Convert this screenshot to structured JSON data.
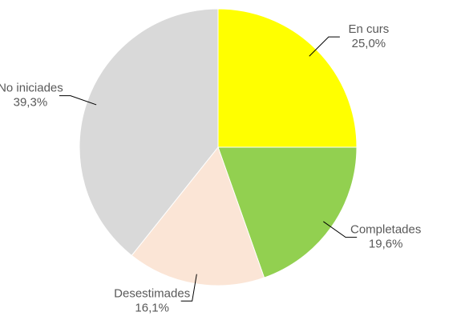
{
  "chart_data": {
    "type": "pie",
    "categories": [
      "En curs",
      "Completades",
      "Desestimades",
      "No iniciades"
    ],
    "values": [
      25.0,
      19.6,
      16.1,
      39.3
    ],
    "value_labels": [
      "25,0%",
      "19,6%",
      "16,1%",
      "39,3%"
    ],
    "colors": [
      "#ffff00",
      "#92d050",
      "#fbe5d6",
      "#d9d9d9"
    ]
  }
}
